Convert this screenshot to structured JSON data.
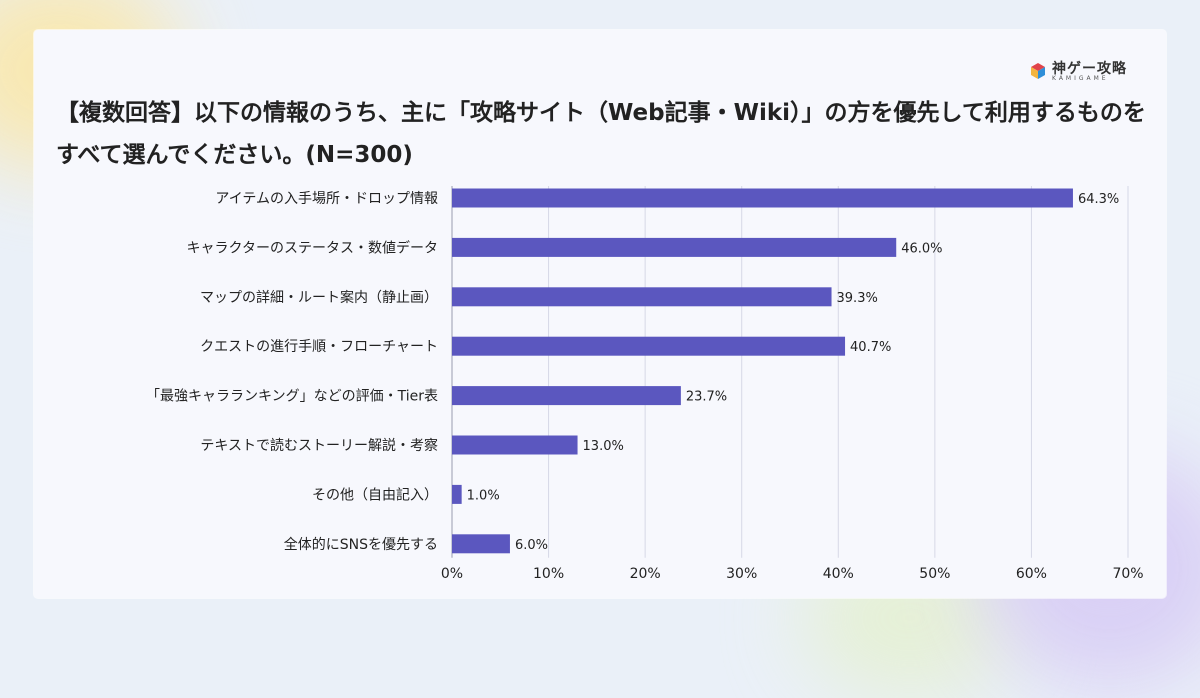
{
  "brand": {
    "name": "神ゲー攻略",
    "sub": "KAMIGAME"
  },
  "title": "【複数回答】以下の情報のうち、主に「攻略サイト（Web記事・Wiki）」の方を優先して利用するものをすべて選んでください。(N=300)",
  "colors": {
    "bar": "#5b57bf",
    "grid": "#d6d8e6",
    "logo": [
      "#e0434a",
      "#f4b53f",
      "#2f8fd8",
      "#3cb371"
    ]
  },
  "chart_data": {
    "type": "bar",
    "orientation": "horizontal",
    "categories": [
      "アイテムの入手場所・ドロップ情報",
      "キャラクターのステータス・数値データ",
      "マップの詳細・ルート案内（静止画）",
      "クエストの進行手順・フローチャート",
      "「最強キャラランキング」などの評価・Tier表",
      "テキストで読むストーリー解説・考察",
      "その他（自由記入）",
      "全体的にSNSを優先する"
    ],
    "values": [
      64.3,
      46.0,
      39.3,
      40.7,
      23.7,
      13.0,
      1.0,
      6.0
    ],
    "value_labels": [
      "64.3%",
      "46.0%",
      "39.3%",
      "40.7%",
      "23.7%",
      "13.0%",
      "1.0%",
      "6.0%"
    ],
    "xlim": [
      0,
      70
    ],
    "xticks": [
      0,
      10,
      20,
      30,
      40,
      50,
      60,
      70
    ],
    "xtick_labels": [
      "0%",
      "10%",
      "20%",
      "30%",
      "40%",
      "50%",
      "60%",
      "70%"
    ],
    "grid": true,
    "legend": false
  }
}
